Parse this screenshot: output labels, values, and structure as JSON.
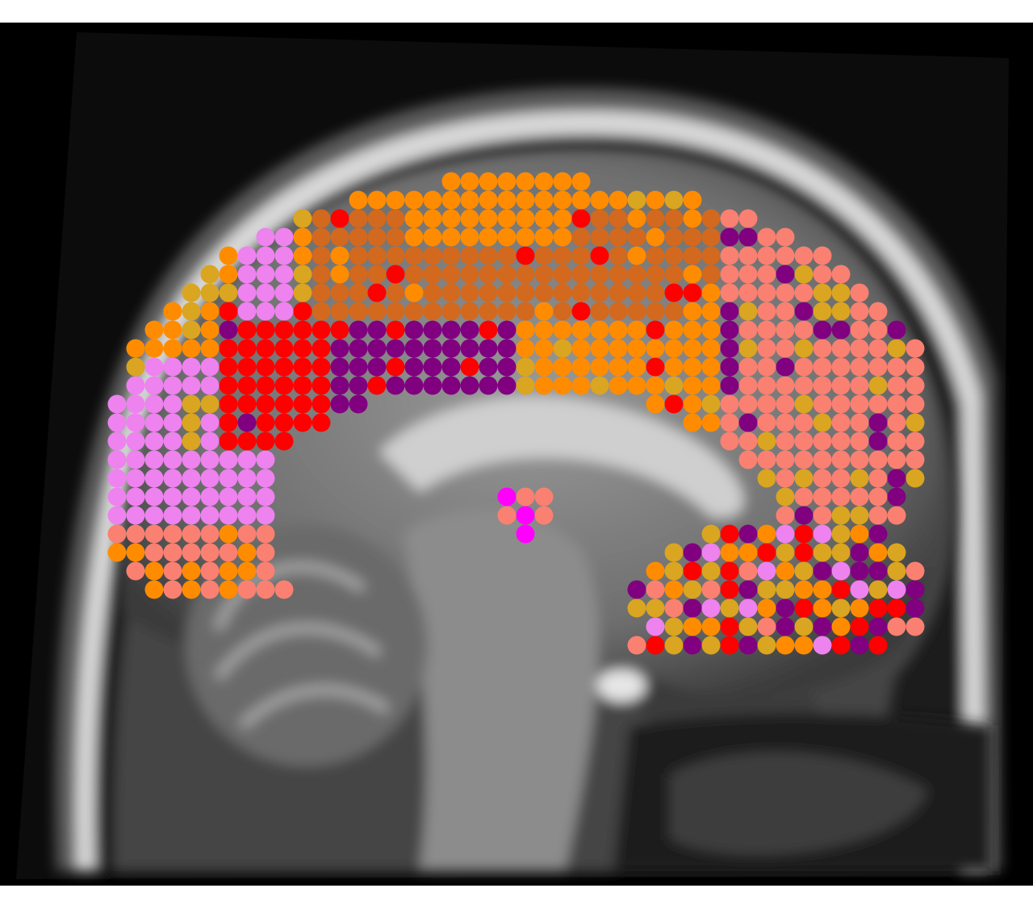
{
  "image": {
    "background_color": "#ffffff",
    "mri_background_color": "#000000"
  },
  "palette": {
    "red": "#ff0000",
    "orange": "#ff8c00",
    "dark_orange": "#d2691e",
    "goldenrod": "#daa520",
    "salmon": "#fa8072",
    "violet": "#ee82ee",
    "purple": "#800080",
    "magenta": "#ff00ff"
  }
}
